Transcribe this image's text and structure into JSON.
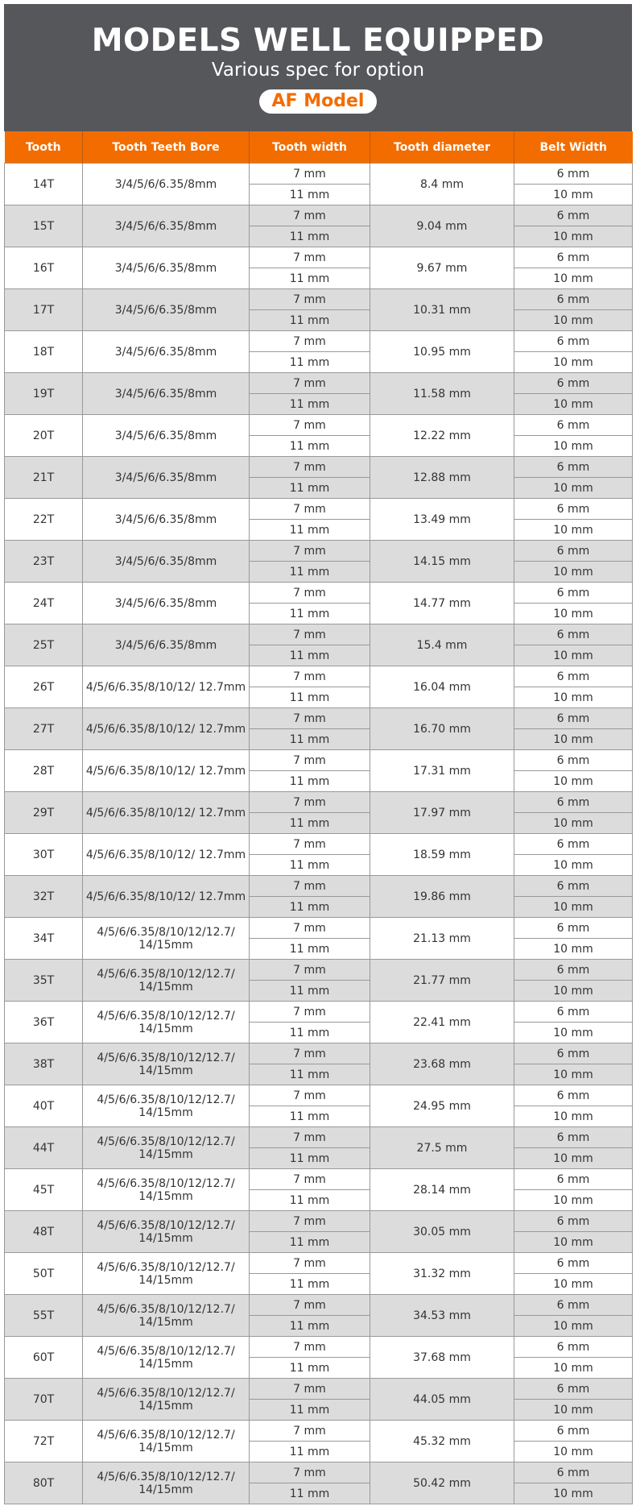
{
  "banner": {
    "title": "MODELS WELL EQUIPPED",
    "subtitle": "Various spec for option",
    "badge": "AF Model"
  },
  "colors": {
    "banner": "#56575b",
    "accent": "#f36c00",
    "alt_row": "#dcdcdc"
  },
  "headers": [
    "Tooth",
    "Tooth Teeth Bore",
    "Tooth width",
    "Tooth diameter",
    "Belt Width"
  ],
  "tooth_widths": [
    "7 mm",
    "11 mm"
  ],
  "belt_widths": [
    "6 mm",
    "10 mm"
  ],
  "rows": [
    {
      "tooth": "14T",
      "bore": "3/4/5/6/6.35/8mm",
      "diameter": "8.4 mm"
    },
    {
      "tooth": "15T",
      "bore": "3/4/5/6/6.35/8mm",
      "diameter": "9.04 mm"
    },
    {
      "tooth": "16T",
      "bore": "3/4/5/6/6.35/8mm",
      "diameter": "9.67 mm"
    },
    {
      "tooth": "17T",
      "bore": "3/4/5/6/6.35/8mm",
      "diameter": "10.31 mm"
    },
    {
      "tooth": "18T",
      "bore": "3/4/5/6/6.35/8mm",
      "diameter": "10.95 mm"
    },
    {
      "tooth": "19T",
      "bore": "3/4/5/6/6.35/8mm",
      "diameter": "11.58 mm"
    },
    {
      "tooth": "20T",
      "bore": "3/4/5/6/6.35/8mm",
      "diameter": "12.22 mm"
    },
    {
      "tooth": "21T",
      "bore": "3/4/5/6/6.35/8mm",
      "diameter": "12.88 mm"
    },
    {
      "tooth": "22T",
      "bore": "3/4/5/6/6.35/8mm",
      "diameter": "13.49 mm"
    },
    {
      "tooth": "23T",
      "bore": "3/4/5/6/6.35/8mm",
      "diameter": "14.15 mm"
    },
    {
      "tooth": "24T",
      "bore": "3/4/5/6/6.35/8mm",
      "diameter": "14.77 mm"
    },
    {
      "tooth": "25T",
      "bore": "3/4/5/6/6.35/8mm",
      "diameter": "15.4 mm"
    },
    {
      "tooth": "26T",
      "bore": "4/5/6/6.35/8/10/12/ 12.7mm",
      "diameter": "16.04 mm"
    },
    {
      "tooth": "27T",
      "bore": "4/5/6/6.35/8/10/12/ 12.7mm",
      "diameter": "16.70 mm"
    },
    {
      "tooth": "28T",
      "bore": "4/5/6/6.35/8/10/12/ 12.7mm",
      "diameter": "17.31 mm"
    },
    {
      "tooth": "29T",
      "bore": "4/5/6/6.35/8/10/12/ 12.7mm",
      "diameter": "17.97 mm"
    },
    {
      "tooth": "30T",
      "bore": "4/5/6/6.35/8/10/12/ 12.7mm",
      "diameter": "18.59 mm"
    },
    {
      "tooth": "32T",
      "bore": "4/5/6/6.35/8/10/12/ 12.7mm",
      "diameter": "19.86 mm"
    },
    {
      "tooth": "34T",
      "bore": "4/5/6/6.35/8/10/12/12.7/ 14/15mm",
      "diameter": "21.13 mm"
    },
    {
      "tooth": "35T",
      "bore": "4/5/6/6.35/8/10/12/12.7/ 14/15mm",
      "diameter": "21.77 mm"
    },
    {
      "tooth": "36T",
      "bore": "4/5/6/6.35/8/10/12/12.7/ 14/15mm",
      "diameter": "22.41 mm"
    },
    {
      "tooth": "38T",
      "bore": "4/5/6/6.35/8/10/12/12.7/ 14/15mm",
      "diameter": "23.68 mm"
    },
    {
      "tooth": "40T",
      "bore": "4/5/6/6.35/8/10/12/12.7/ 14/15mm",
      "diameter": "24.95 mm"
    },
    {
      "tooth": "44T",
      "bore": "4/5/6/6.35/8/10/12/12.7/ 14/15mm",
      "diameter": "27.5 mm"
    },
    {
      "tooth": "45T",
      "bore": "4/5/6/6.35/8/10/12/12.7/ 14/15mm",
      "diameter": "28.14 mm"
    },
    {
      "tooth": "48T",
      "bore": "4/5/6/6.35/8/10/12/12.7/ 14/15mm",
      "diameter": "30.05 mm"
    },
    {
      "tooth": "50T",
      "bore": "4/5/6/6.35/8/10/12/12.7/ 14/15mm",
      "diameter": "31.32 mm"
    },
    {
      "tooth": "55T",
      "bore": "4/5/6/6.35/8/10/12/12.7/ 14/15mm",
      "diameter": "34.53 mm"
    },
    {
      "tooth": "60T",
      "bore": "4/5/6/6.35/8/10/12/12.7/ 14/15mm",
      "diameter": "37.68 mm"
    },
    {
      "tooth": "70T",
      "bore": "4/5/6/6.35/8/10/12/12.7/ 14/15mm",
      "diameter": "44.05 mm"
    },
    {
      "tooth": "72T",
      "bore": "4/5/6/6.35/8/10/12/12.7/ 14/15mm",
      "diameter": "45.32 mm"
    },
    {
      "tooth": "80T",
      "bore": "4/5/6/6.35/8/10/12/12.7/ 14/15mm",
      "diameter": "50.42 mm"
    }
  ]
}
